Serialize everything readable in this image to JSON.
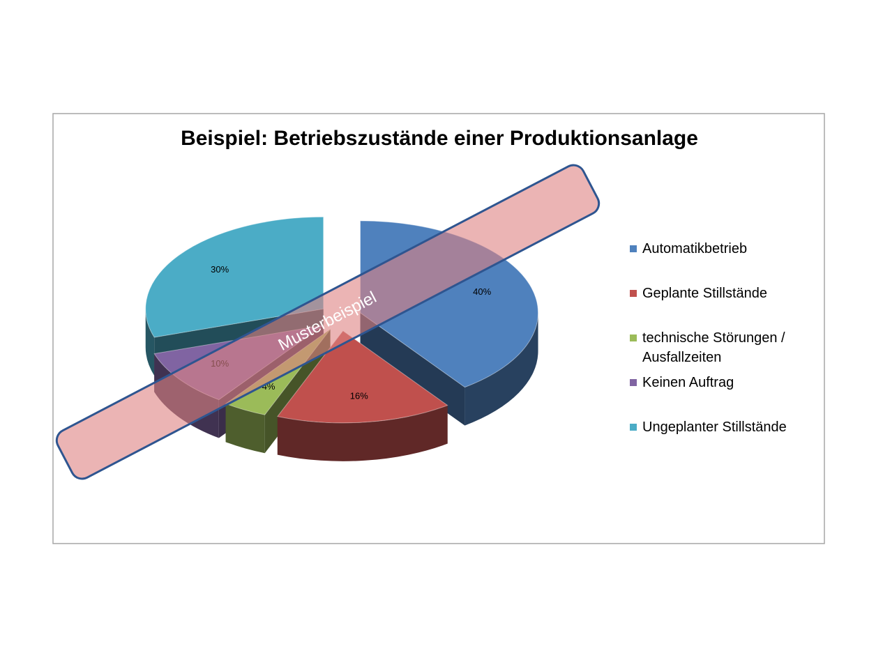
{
  "chart_data": {
    "type": "pie3d",
    "title": "Beispiel: Betriebszustände einer Produktionsanlage",
    "categories": [
      "Automatikbetrieb",
      "Geplante Stillstände",
      "technische Störungen / Ausfallzeiten",
      "Keinen Auftrag",
      "Ungeplanter Stillstände"
    ],
    "values": [
      40,
      16,
      4,
      10,
      30
    ],
    "value_labels": [
      "40%",
      "16%",
      "4%",
      "10%",
      "30%"
    ],
    "colors": [
      "#4f81bd",
      "#c0504d",
      "#9bbb59",
      "#8064a2",
      "#4bacc6"
    ],
    "legend": "right",
    "watermark": "Musterbeispiel"
  }
}
